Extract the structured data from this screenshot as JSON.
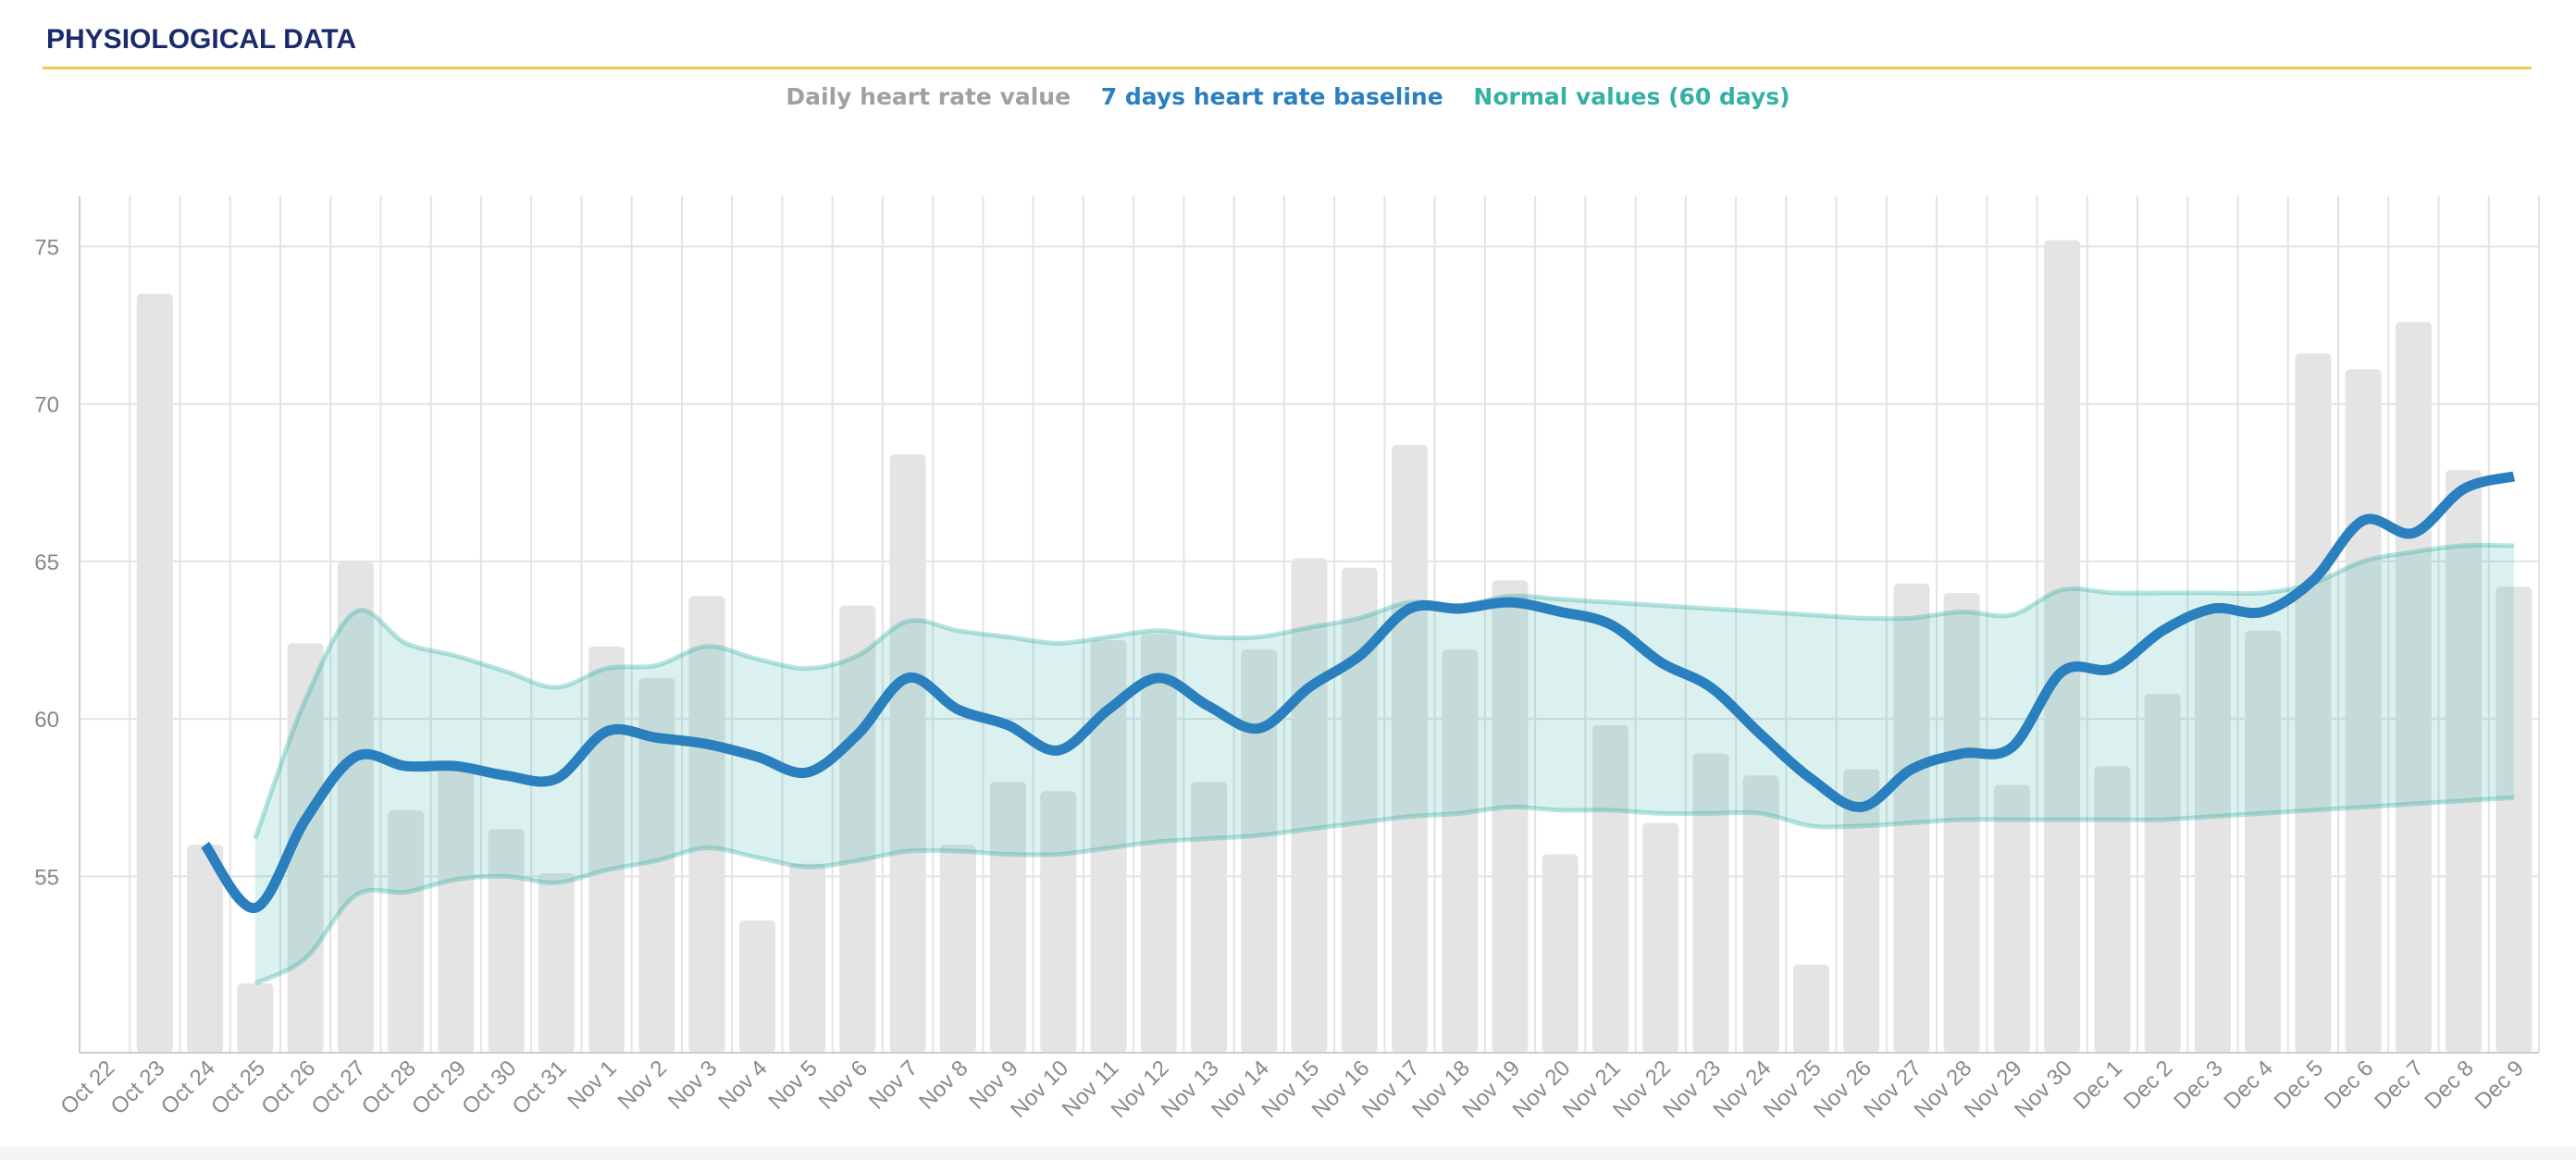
{
  "header": {
    "title": "PHYSIOLOGICAL DATA"
  },
  "colors": {
    "bars": "#e4e4e4",
    "baseline": "#2a7fbf",
    "normal": "#35b0a5",
    "accent": "#f2c94c",
    "title": "#1b2a6b"
  },
  "legend": {
    "daily": "Daily heart rate value",
    "baseline": "7 days heart rate baseline",
    "normal": "Normal values (60 days)"
  },
  "chart_data": {
    "type": "bar",
    "title": "",
    "xlabel": "",
    "ylabel": "",
    "ylim": [
      49.4,
      76.6
    ],
    "yticks": [
      55,
      60,
      65,
      70,
      75
    ],
    "grid": true,
    "legend_position": "top-center",
    "categories": [
      "Oct 22",
      "Oct 23",
      "Oct 24",
      "Oct 25",
      "Oct 26",
      "Oct 27",
      "Oct 28",
      "Oct 29",
      "Oct 30",
      "Oct 31",
      "Nov 1",
      "Nov 2",
      "Nov 3",
      "Nov 4",
      "Nov 5",
      "Nov 6",
      "Nov 7",
      "Nov 8",
      "Nov 9",
      "Nov 10",
      "Nov 11",
      "Nov 12",
      "Nov 13",
      "Nov 14",
      "Nov 15",
      "Nov 16",
      "Nov 17",
      "Nov 18",
      "Nov 19",
      "Nov 20",
      "Nov 21",
      "Nov 22",
      "Nov 23",
      "Nov 24",
      "Nov 25",
      "Nov 26",
      "Nov 27",
      "Nov 28",
      "Nov 29",
      "Nov 30",
      "Dec 1",
      "Dec 2",
      "Dec 3",
      "Dec 4",
      "Dec 5",
      "Dec 6",
      "Dec 7",
      "Dec 8",
      "Dec 9"
    ],
    "series": [
      {
        "name": "Daily heart rate value",
        "type": "bar",
        "values": [
          null,
          73.5,
          56.0,
          51.6,
          62.4,
          65.0,
          57.1,
          58.6,
          56.5,
          55.1,
          62.3,
          61.3,
          63.9,
          53.6,
          55.4,
          63.6,
          68.4,
          56.0,
          58.0,
          57.7,
          62.5,
          62.7,
          58.0,
          62.2,
          65.1,
          64.8,
          68.7,
          62.2,
          64.4,
          55.7,
          59.8,
          56.7,
          58.9,
          58.2,
          52.2,
          58.4,
          64.3,
          64.0,
          57.9,
          75.2,
          58.5,
          60.8,
          63.4,
          62.8,
          71.6,
          71.1,
          72.6,
          67.9,
          64.2
        ]
      },
      {
        "name": "7 days heart rate baseline",
        "type": "line",
        "values": [
          null,
          null,
          56.0,
          54.0,
          56.8,
          58.8,
          58.5,
          58.5,
          58.2,
          58.1,
          59.6,
          59.4,
          59.2,
          58.8,
          58.3,
          59.5,
          61.3,
          60.3,
          59.8,
          59.0,
          60.3,
          61.3,
          60.4,
          59.7,
          61.0,
          62.0,
          63.5,
          63.5,
          63.7,
          63.4,
          63.0,
          61.8,
          61.0,
          59.5,
          58.1,
          57.2,
          58.4,
          58.9,
          59.1,
          61.5,
          61.6,
          62.8,
          63.5,
          63.4,
          64.4,
          66.3,
          65.9,
          67.3,
          67.7
        ]
      },
      {
        "name": "Normal values (60 days)",
        "type": "band",
        "upper": [
          null,
          null,
          null,
          56.2,
          60.6,
          63.4,
          62.4,
          62.0,
          61.5,
          61.0,
          61.6,
          61.7,
          62.3,
          61.9,
          61.6,
          62.0,
          63.1,
          62.8,
          62.6,
          62.4,
          62.6,
          62.8,
          62.6,
          62.6,
          62.9,
          63.2,
          63.7,
          63.6,
          63.9,
          63.8,
          63.7,
          63.6,
          63.5,
          63.4,
          63.3,
          63.2,
          63.2,
          63.4,
          63.3,
          64.1,
          64.0,
          64.0,
          64.0,
          64.0,
          64.3,
          65.0,
          65.3,
          65.5,
          65.5
        ],
        "lower": [
          null,
          null,
          null,
          51.6,
          52.4,
          54.4,
          54.5,
          54.9,
          55.0,
          54.8,
          55.2,
          55.5,
          55.9,
          55.6,
          55.3,
          55.5,
          55.8,
          55.8,
          55.7,
          55.7,
          55.9,
          56.1,
          56.2,
          56.3,
          56.5,
          56.7,
          56.9,
          57.0,
          57.2,
          57.1,
          57.1,
          57.0,
          57.0,
          57.0,
          56.6,
          56.6,
          56.7,
          56.8,
          56.8,
          56.8,
          56.8,
          56.8,
          56.9,
          57.0,
          57.1,
          57.2,
          57.3,
          57.4,
          57.5
        ]
      }
    ]
  }
}
